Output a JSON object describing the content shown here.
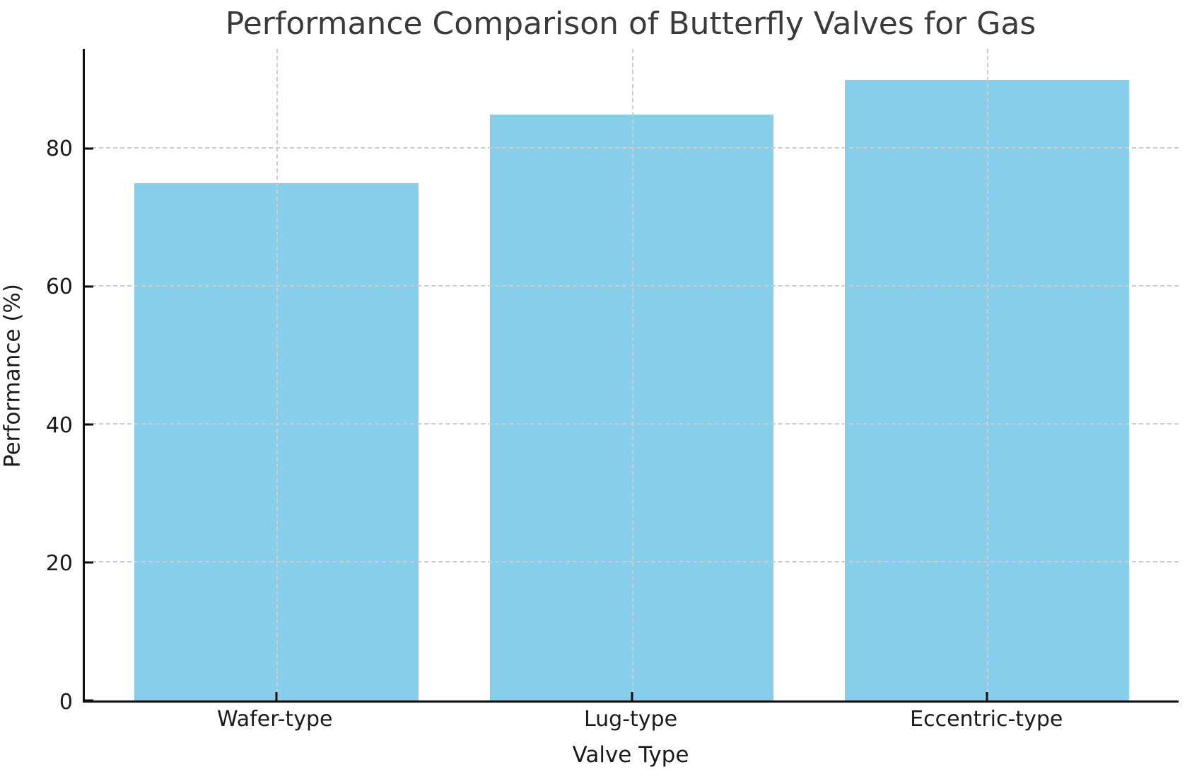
{
  "chart_data": {
    "type": "bar",
    "title": "Performance Comparison of Butterfly Valves for Gas",
    "xlabel": "Valve Type",
    "ylabel": "Performance (%)",
    "categories": [
      "Wafer-type",
      "Lug-type",
      "Eccentric-type"
    ],
    "values": [
      75,
      85,
      90
    ],
    "yticks": [
      0,
      20,
      40,
      60,
      80
    ],
    "ylim": [
      0,
      94.5
    ],
    "xlim": [
      -0.54,
      2.54
    ],
    "bar_width": 0.8,
    "grid": true,
    "grid_style": "dashed",
    "legend": "none",
    "colors": {
      "bar_fill": "#87CEEB",
      "grid_line": "#cccccc",
      "spine": "#0f0f0f",
      "title_text": "#3a3a3a",
      "label_text": "#1a1a1a"
    }
  }
}
